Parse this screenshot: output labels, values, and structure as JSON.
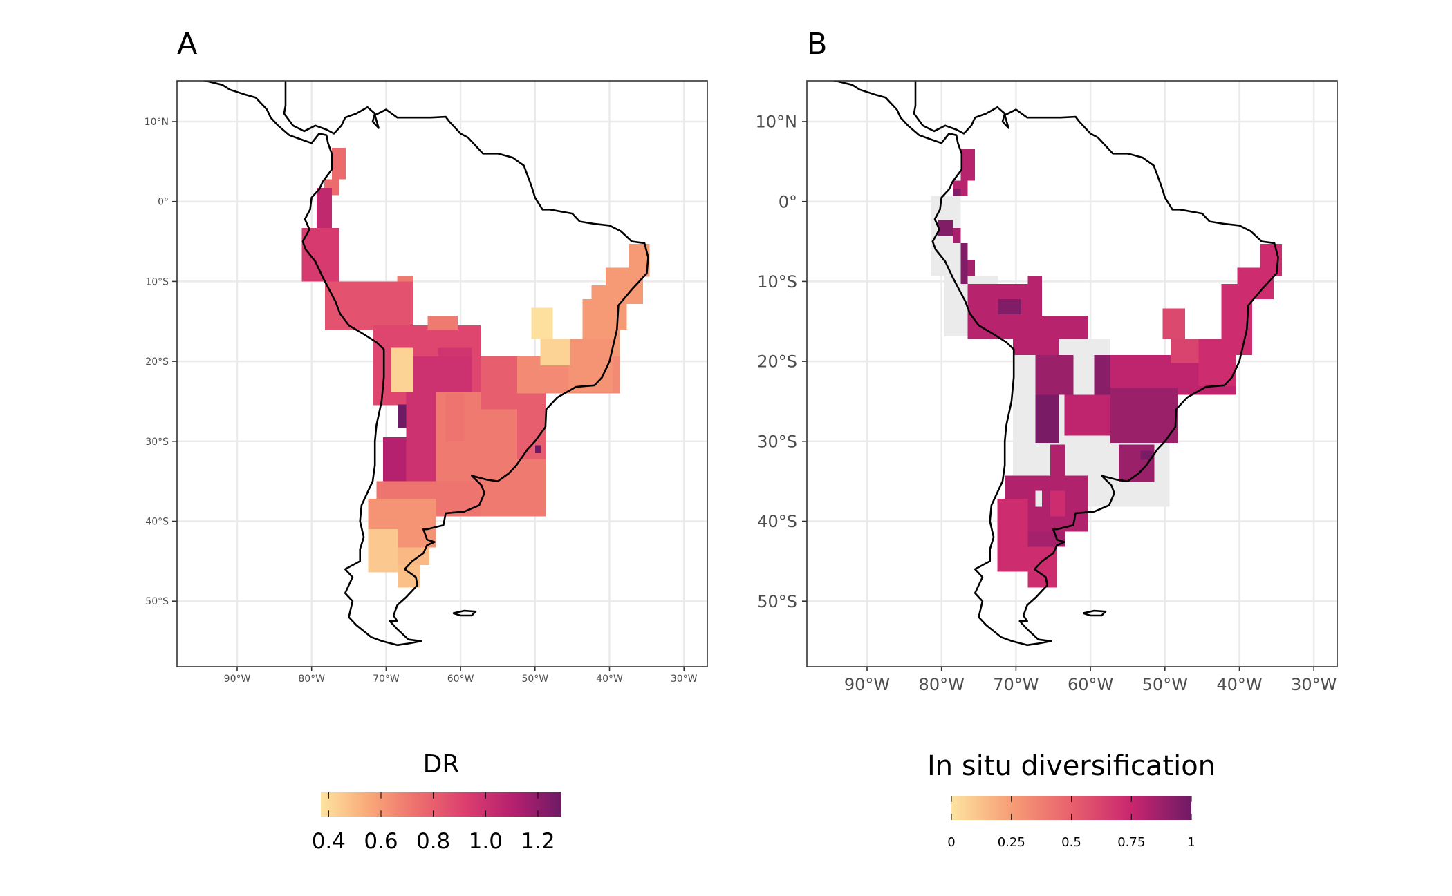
{
  "lon_ticks": [
    -90,
    -80,
    -70,
    -60,
    -50,
    -40,
    -30
  ],
  "lat_ticks": [
    10,
    0,
    -10,
    -20,
    -30,
    -40,
    -50
  ],
  "lon_tick_labels": [
    "90°W",
    "80°W",
    "70°W",
    "60°W",
    "50°W",
    "40°W",
    "30°W"
  ],
  "lat_tick_labels": [
    "10°N",
    "0°",
    "10°S",
    "20°S",
    "30°S",
    "40°S",
    "50°S"
  ],
  "na_color": "#ebebeb",
  "coastline": {
    "main": [
      [
        -83.5,
        15.5
      ],
      [
        -83.5,
        14
      ],
      [
        -83.5,
        12
      ],
      [
        -83.7,
        11
      ],
      [
        -82.5,
        9.5
      ],
      [
        -81,
        8.8
      ],
      [
        -79.5,
        9.5
      ],
      [
        -78,
        9
      ],
      [
        -77,
        8.5
      ],
      [
        -76,
        9.5
      ],
      [
        -75.5,
        10.5
      ],
      [
        -74,
        11
      ],
      [
        -72.5,
        11.8
      ],
      [
        -71.5,
        11
      ],
      [
        -71.8,
        10
      ],
      [
        -71,
        9.2
      ],
      [
        -71.5,
        10.8
      ],
      [
        -70,
        11.5
      ],
      [
        -68.5,
        10.5
      ],
      [
        -66,
        10.5
      ],
      [
        -64,
        10.5
      ],
      [
        -62,
        10.6
      ],
      [
        -61.5,
        10
      ],
      [
        -60,
        8.5
      ],
      [
        -59,
        8
      ],
      [
        -57,
        6
      ],
      [
        -55,
        6
      ],
      [
        -53,
        5.5
      ],
      [
        -51.5,
        4.5
      ],
      [
        -50.5,
        2
      ],
      [
        -50,
        0.5
      ],
      [
        -49,
        -1
      ],
      [
        -48,
        -1
      ],
      [
        -45,
        -1.5
      ],
      [
        -44,
        -2.5
      ],
      [
        -42,
        -2.8
      ],
      [
        -40,
        -3
      ],
      [
        -38.5,
        -3.7
      ],
      [
        -37,
        -5
      ],
      [
        -35.3,
        -5.2
      ],
      [
        -34.8,
        -7
      ],
      [
        -35,
        -9
      ],
      [
        -37,
        -11
      ],
      [
        -38.8,
        -13
      ],
      [
        -39,
        -16
      ],
      [
        -39.5,
        -18
      ],
      [
        -40,
        -20
      ],
      [
        -41,
        -22
      ],
      [
        -42,
        -23
      ],
      [
        -44.5,
        -23.2
      ],
      [
        -47,
        -24.5
      ],
      [
        -48.5,
        -26
      ],
      [
        -48.6,
        -28.2
      ],
      [
        -50,
        -30
      ],
      [
        -51,
        -31
      ],
      [
        -52.5,
        -33
      ],
      [
        -53.5,
        -34
      ],
      [
        -55,
        -35
      ],
      [
        -56.5,
        -34.8
      ],
      [
        -58.5,
        -34.3
      ],
      [
        -57.2,
        -35.5
      ],
      [
        -56.8,
        -36.5
      ],
      [
        -57.5,
        -38
      ],
      [
        -59.5,
        -38.8
      ],
      [
        -62,
        -39
      ],
      [
        -62.3,
        -40.5
      ],
      [
        -64.5,
        -41
      ],
      [
        -65,
        -41
      ],
      [
        -64.5,
        -42.3
      ],
      [
        -63.5,
        -42.6
      ],
      [
        -64.5,
        -43
      ],
      [
        -65,
        -44
      ],
      [
        -66.5,
        -45
      ],
      [
        -67.5,
        -46
      ],
      [
        -66,
        -47
      ],
      [
        -65.8,
        -48
      ],
      [
        -67.3,
        -49.5
      ],
      [
        -68.5,
        -50.5
      ],
      [
        -69,
        -51.8
      ],
      [
        -68.5,
        -52.5
      ],
      [
        -69.5,
        -52.5
      ],
      [
        -68.5,
        -53.5
      ],
      [
        -67,
        -54.8
      ],
      [
        -65.3,
        -55
      ],
      [
        -67,
        -55.3
      ],
      [
        -68.5,
        -55.5
      ],
      [
        -70.5,
        -55
      ],
      [
        -72,
        -54.5
      ],
      [
        -74,
        -53
      ],
      [
        -75,
        -52
      ],
      [
        -74.5,
        -50
      ],
      [
        -75.5,
        -49
      ],
      [
        -74.5,
        -47
      ],
      [
        -75.5,
        -46
      ],
      [
        -73.5,
        -45
      ],
      [
        -73.5,
        -43.5
      ],
      [
        -73,
        -42
      ],
      [
        -73.5,
        -40
      ],
      [
        -73.3,
        -38
      ],
      [
        -71.8,
        -35
      ],
      [
        -71.5,
        -33
      ],
      [
        -71.5,
        -30
      ],
      [
        -71.3,
        -28
      ],
      [
        -70.6,
        -25
      ],
      [
        -70.3,
        -22
      ],
      [
        -70.3,
        -18.5
      ],
      [
        -71.3,
        -17.6
      ],
      [
        -73,
        -16.6
      ],
      [
        -75,
        -15.5
      ],
      [
        -76.2,
        -14
      ],
      [
        -76.8,
        -12.5
      ],
      [
        -78.5,
        -9.5
      ],
      [
        -79.5,
        -7.5
      ],
      [
        -80.8,
        -6
      ],
      [
        -81.2,
        -5
      ],
      [
        -80.3,
        -3.5
      ],
      [
        -80.9,
        -2.2
      ],
      [
        -80.2,
        -1
      ],
      [
        -80,
        0.5
      ],
      [
        -79,
        1.5
      ],
      [
        -78.5,
        2.5
      ],
      [
        -77.3,
        4
      ],
      [
        -77.3,
        6
      ],
      [
        -77.8,
        7.3
      ],
      [
        -78,
        8.3
      ],
      [
        -79,
        8.5
      ],
      [
        -80,
        7.3
      ],
      [
        -81.5,
        7.8
      ],
      [
        -83,
        8.3
      ],
      [
        -84.5,
        9.5
      ],
      [
        -85.5,
        10.5
      ],
      [
        -86,
        11.5
      ],
      [
        -87.5,
        13
      ],
      [
        -89,
        13.4
      ],
      [
        -91,
        14
      ],
      [
        -92,
        14.6
      ],
      [
        -96,
        15.5
      ]
    ],
    "falklands": [
      [
        -61,
        -51.5
      ],
      [
        -59.5,
        -51.2
      ],
      [
        -58,
        -51.3
      ],
      [
        -58.5,
        -51.8
      ],
      [
        -60,
        -51.8
      ],
      [
        -61,
        -51.5
      ]
    ]
  },
  "panels": [
    {
      "label": "A",
      "legend": {
        "title": "DR",
        "range": [
          0.37,
          1.29
        ],
        "ticks": [
          0.4,
          0.6,
          0.8,
          1.0,
          1.2
        ],
        "tick_labels": [
          "0.4",
          "0.6",
          "0.8",
          "1.0",
          "1.2"
        ],
        "colors": [
          "#fde3a0",
          "#f9a878",
          "#ed6f6e",
          "#dc3f6f",
          "#b5206f",
          "#6f1a65"
        ]
      },
      "cells": [
        [
          -77.3,
          6.7,
          -75.4,
          2.8,
          0.75
        ],
        [
          -78.3,
          2.8,
          -76.3,
          0.8,
          0.75
        ],
        [
          -79.3,
          1.7,
          -77.3,
          -3.3,
          1.05
        ],
        [
          -81.3,
          -3.3,
          -76.3,
          -10,
          0.95
        ],
        [
          -78.2,
          -10,
          -66.4,
          -16,
          0.85
        ],
        [
          -68.5,
          -9.3,
          -66.4,
          -10,
          0.7
        ],
        [
          -71.8,
          -15.5,
          -57.3,
          -25.5,
          0.9
        ],
        [
          -64.4,
          -14.3,
          -60.4,
          -16,
          0.7
        ],
        [
          -63,
          -18.3,
          -58.5,
          -22,
          0.98
        ],
        [
          -67.3,
          -19.4,
          -58.5,
          -35,
          1.0
        ],
        [
          -70.4,
          -29.5,
          -67.3,
          -35,
          1.1
        ],
        [
          -68.4,
          -25.4,
          -67.3,
          -28.3,
          1.3
        ],
        [
          -69.4,
          -18.3,
          -66.4,
          -23.9,
          0.42
        ],
        [
          -63.3,
          -23.9,
          -48.6,
          -39.4,
          0.7
        ],
        [
          -57.3,
          -19.4,
          -48.6,
          -32.2,
          0.8
        ],
        [
          -59.5,
          -26,
          -52.4,
          -35,
          0.7
        ],
        [
          -62,
          -24,
          -59.5,
          -30,
          0.72
        ],
        [
          -52.4,
          -19.4,
          -38.6,
          -24,
          0.65
        ],
        [
          -50,
          -30.5,
          -49.2,
          -31.5,
          1.3
        ],
        [
          -37.4,
          -5.3,
          -34.6,
          -9.4,
          0.6
        ],
        [
          -40.5,
          -8.3,
          -35.5,
          -12.8,
          0.6
        ],
        [
          -42.4,
          -10.5,
          -37.7,
          -16,
          0.6
        ],
        [
          -43.6,
          -12.2,
          -38.6,
          -19.4,
          0.6
        ],
        [
          -45.5,
          -17.2,
          -39.6,
          -23.9,
          0.62
        ],
        [
          -50.5,
          -13.3,
          -47.6,
          -17.2,
          0.38
        ],
        [
          -49.3,
          -17.2,
          -45.3,
          -20.5,
          0.42
        ],
        [
          -71.3,
          -35,
          -57.3,
          -39.4,
          0.72
        ],
        [
          -72.4,
          -37.2,
          -63.3,
          -43.3,
          0.62
        ],
        [
          -72.4,
          -41,
          -68.4,
          -46.4,
          0.45
        ],
        [
          -68.4,
          -43.3,
          -64.2,
          -45.5,
          0.5
        ],
        [
          -68.4,
          -45.5,
          -65.4,
          -48.3,
          0.48
        ]
      ]
    },
    {
      "label": "B",
      "legend": {
        "title": "In situ diversification",
        "range": [
          0,
          1
        ],
        "ticks": [
          0,
          0.25,
          0.5,
          0.75,
          1
        ],
        "tick_labels": [
          "0",
          "0.25",
          "0.5",
          "0.75",
          "1"
        ],
        "colors": [
          "#fde3a0",
          "#f79d76",
          "#e8606d",
          "#c9266f",
          "#6f1a65"
        ]
      },
      "cells": [
        [
          -81.4,
          0.7,
          -77.4,
          -9.3,
          null
        ],
        [
          -79.6,
          -9.3,
          -72.4,
          -16.9,
          null
        ],
        [
          -70.4,
          -17.2,
          -57.3,
          -30.4,
          null
        ],
        [
          -70.4,
          -29.3,
          -49.4,
          -38.2,
          null
        ],
        [
          -77.4,
          6.6,
          -75.5,
          2.6,
          0.8
        ],
        [
          -78.5,
          2.6,
          -76.5,
          0.7,
          0.8
        ],
        [
          -78.5,
          1.6,
          -77.4,
          0.7,
          0.95
        ],
        [
          -80.5,
          -2.3,
          -78.5,
          -4.3,
          0.95
        ],
        [
          -78.5,
          -3.3,
          -77.4,
          -5.2,
          0.85
        ],
        [
          -77.4,
          -5.2,
          -76.5,
          -10.3,
          0.95
        ],
        [
          -76.5,
          -7.3,
          -75.5,
          -9.3,
          0.85
        ],
        [
          -76.5,
          -10.3,
          -66.5,
          -17.2,
          0.8
        ],
        [
          -72.4,
          -12.2,
          -69.3,
          -14.1,
          0.95
        ],
        [
          -68.4,
          -9.3,
          -66.5,
          -12.2,
          0.8
        ],
        [
          -66.5,
          -14.3,
          -60.4,
          -17.2,
          0.8
        ],
        [
          -70.4,
          -17.2,
          -64.3,
          -19.2,
          0.8
        ],
        [
          -67.4,
          -19.2,
          -62.3,
          -24.2,
          0.88
        ],
        [
          -67.4,
          -24.2,
          -64.3,
          -30.2,
          0.97
        ],
        [
          -59.5,
          -19.2,
          -57.3,
          -24.2,
          0.93
        ],
        [
          -57.3,
          -19.2,
          -40.4,
          -24.2,
          0.78
        ],
        [
          -63.5,
          -24.2,
          -55.5,
          -29.3,
          0.78
        ],
        [
          -57.3,
          -23.3,
          -48.3,
          -30.2,
          0.88
        ],
        [
          -37.2,
          -5.3,
          -34.3,
          -9.3,
          0.72
        ],
        [
          -40.3,
          -8.3,
          -35.4,
          -12.2,
          0.72
        ],
        [
          -42.4,
          -10.3,
          -38.3,
          -19.2,
          0.72
        ],
        [
          -45.5,
          -17.2,
          -40.4,
          -23.1,
          0.72
        ],
        [
          -50.3,
          -13.4,
          -47.3,
          -17.2,
          0.6
        ],
        [
          -49.2,
          -17.2,
          -45.5,
          -20.2,
          0.62
        ],
        [
          -56.2,
          -30.4,
          -51.4,
          -35.1,
          0.88
        ],
        [
          -53.3,
          -31.2,
          -51.5,
          -32.3,
          0.97
        ],
        [
          -65.4,
          -30.4,
          -63.4,
          -35.1,
          0.82
        ],
        [
          -71.5,
          -34.3,
          -60.4,
          -41.3,
          0.82
        ],
        [
          -67.4,
          -36.2,
          -66.5,
          -38.2,
          null
        ],
        [
          -65.4,
          -36.2,
          -63.4,
          -39.4,
          0.72
        ],
        [
          -72.5,
          -37.2,
          -68.4,
          -46.3,
          0.72
        ],
        [
          -68.4,
          -41.3,
          -63.4,
          -43.2,
          0.85
        ],
        [
          -68.4,
          -43.2,
          -64.5,
          -48.3,
          0.72
        ]
      ]
    }
  ]
}
